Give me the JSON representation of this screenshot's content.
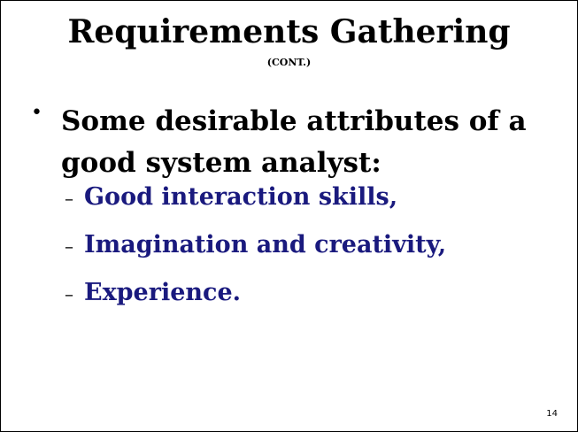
{
  "slide": {
    "title": "Requirements Gathering",
    "subtitle": "(CONT.)",
    "bullet_symbol": "•",
    "main_point": "Some desirable attributes of a good system analyst:",
    "dash_symbol": "–",
    "sub_points": [
      "Good interaction skills,",
      "Imagination and creativity,",
      "Experience."
    ],
    "page_number": "14"
  },
  "colors": {
    "title_text": "#000000",
    "sub_point_text": "#1a1a7e",
    "background": "#ffffff",
    "border": "#000000"
  }
}
